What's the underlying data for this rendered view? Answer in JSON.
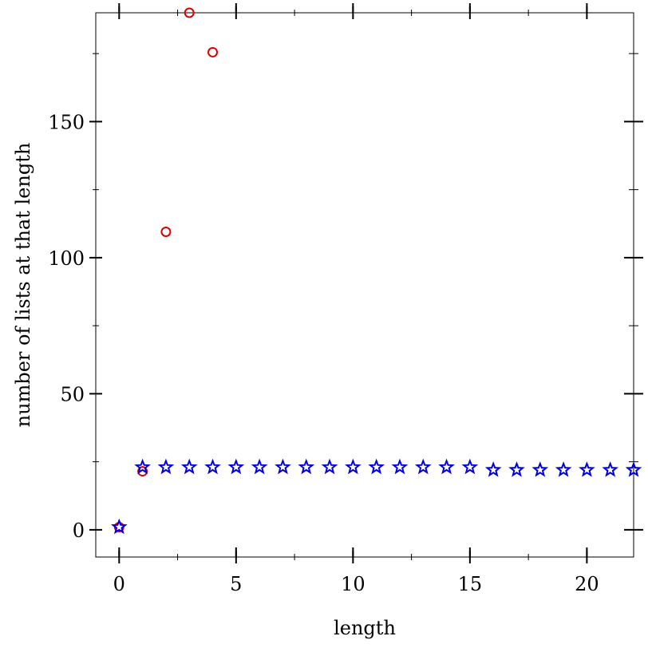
{
  "chart_data": {
    "type": "scatter",
    "xlabel": "length",
    "ylabel": "number of lists at that length",
    "xlim": [
      -1,
      22
    ],
    "ylim": [
      -10,
      190
    ],
    "xticks": [
      0,
      5,
      10,
      15,
      20
    ],
    "yticks": [
      0,
      50,
      100,
      150
    ],
    "x_minor_ticks": [
      2.5,
      7.5,
      12.5,
      17.5
    ],
    "y_minor_ticks": [
      25,
      75,
      125,
      175
    ],
    "grid": false,
    "series": [
      {
        "marker": "circle",
        "color": "#e00000",
        "x": [
          0,
          1,
          2,
          3,
          4
        ],
        "y": [
          1,
          21.5,
          109.5,
          190,
          175.5
        ]
      },
      {
        "marker": "star",
        "color": "#0000e0",
        "x": [
          0,
          1,
          2,
          3,
          4,
          5,
          6,
          7,
          8,
          9,
          10,
          11,
          12,
          13,
          14,
          15,
          16,
          17,
          18,
          19,
          20,
          21,
          22
        ],
        "y": [
          1,
          23,
          23,
          23,
          23,
          23,
          23,
          23,
          23,
          23,
          23,
          23,
          23,
          23,
          23,
          23,
          22,
          22,
          22,
          22,
          22,
          22,
          22
        ]
      }
    ]
  }
}
